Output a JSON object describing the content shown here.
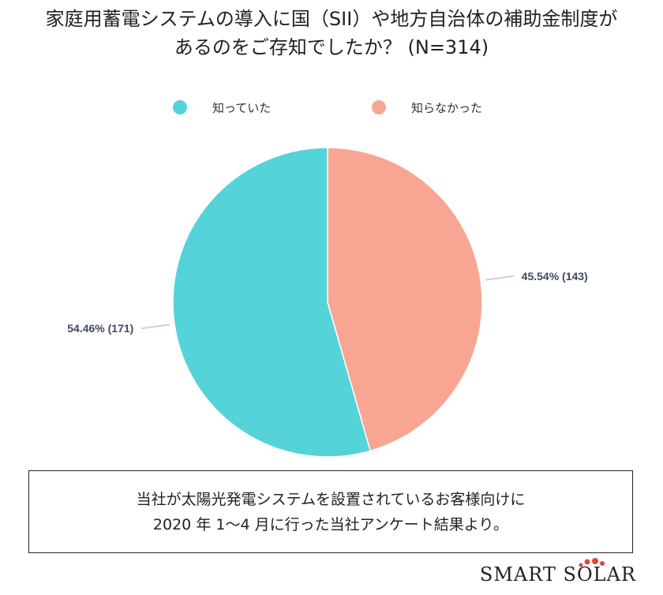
{
  "title": {
    "line1": "家庭用蓄電システムの導入に国（SII）や地方自治体の補助金制度が",
    "line2": "あるのをご存知でしたか？ (N=314)"
  },
  "chart_data": {
    "type": "pie",
    "title": "家庭用蓄電システムの導入に国（SII）や地方自治体の補助金制度があるのをご存知でしたか？ (N=314)",
    "legend_position": "top",
    "slices": [
      {
        "name": "知らなかった",
        "value": 143,
        "percent": 45.54,
        "label": "45.54% (143)",
        "color": "#f9a593"
      },
      {
        "name": "知っていた",
        "value": 171,
        "percent": 54.46,
        "label": "54.46% (171)",
        "color": "#54d3d9"
      }
    ]
  },
  "legend": [
    {
      "label": "知っていた",
      "color": "#54d3d9"
    },
    {
      "label": "知らなかった",
      "color": "#f9a593"
    }
  ],
  "note": {
    "line1": "当社が太陽光発電システムを設置されているお客様向けに",
    "line2": "2020 年 1～4 月に行った当社アンケート結果より。"
  },
  "brand": {
    "text": "SMART SOLAR",
    "dots_color": "#e0473c"
  }
}
